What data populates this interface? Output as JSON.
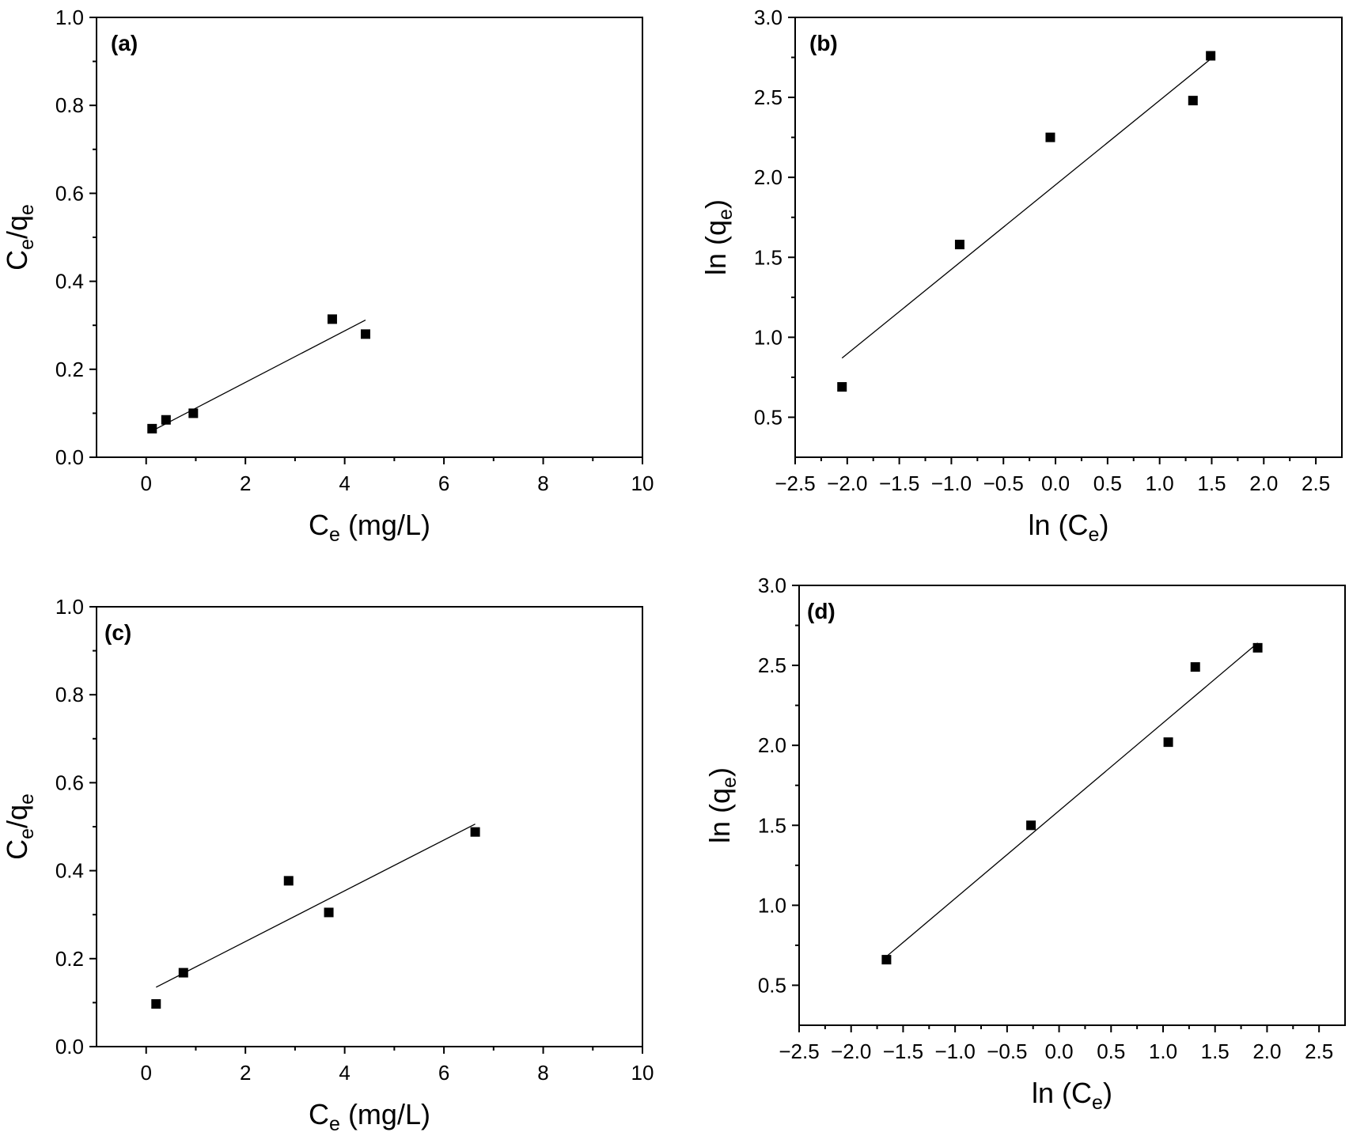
{
  "chart_data": [
    {
      "type": "scatter",
      "panel": "(a)",
      "xlabel": {
        "main": "C",
        "sub": "e",
        "suffix": " (mg/L)"
      },
      "ylabel": {
        "parts": [
          {
            "t": "C"
          },
          {
            "t": "e",
            "sub": true
          },
          {
            "t": "/q"
          },
          {
            "t": "e",
            "sub": true
          }
        ]
      },
      "xlim": [
        -1,
        10
      ],
      "ylim": [
        0,
        1
      ],
      "xticks": [
        0,
        2,
        4,
        6,
        8,
        10
      ],
      "xtick_labels": [
        "0",
        "2",
        "4",
        "6",
        "8",
        "10"
      ],
      "yticks": [
        0,
        0.2,
        0.4,
        0.6,
        0.8,
        1.0
      ],
      "ytick_labels": [
        "0.0",
        "0.2",
        "0.4",
        "0.6",
        "0.8",
        "1.0"
      ],
      "points": [
        {
          "x": 0.12,
          "y": 0.065
        },
        {
          "x": 0.4,
          "y": 0.085
        },
        {
          "x": 0.95,
          "y": 0.1
        },
        {
          "x": 3.75,
          "y": 0.314
        },
        {
          "x": 4.42,
          "y": 0.28
        }
      ],
      "fit_line": {
        "x": [
          0.12,
          4.42
        ],
        "y": [
          0.06,
          0.312
        ]
      }
    },
    {
      "type": "scatter",
      "panel": "(b)",
      "xlabel": {
        "main": "ln (C",
        "sub": "e",
        "suffix": ")"
      },
      "ylabel": {
        "parts": [
          {
            "t": "ln (q"
          },
          {
            "t": "e",
            "sub": true
          },
          {
            "t": ")"
          }
        ]
      },
      "xlim": [
        -2.5,
        2.75
      ],
      "ylim": [
        0.25,
        3.0
      ],
      "xticks": [
        -2.5,
        -2.0,
        -1.5,
        -1.0,
        -0.5,
        0.0,
        0.5,
        1.0,
        1.5,
        2.0,
        2.5
      ],
      "xtick_labels": [
        "−2.5",
        "−2.0",
        "−1.5",
        "−1.0",
        "−0.5",
        "0.0",
        "0.5",
        "1.0",
        "1.5",
        "2.0",
        "2.5"
      ],
      "yticks": [
        0.5,
        1.0,
        1.5,
        2.0,
        2.5,
        3.0
      ],
      "ytick_labels": [
        "0.5",
        "1.0",
        "1.5",
        "2.0",
        "2.5",
        "3.0"
      ],
      "points": [
        {
          "x": -2.05,
          "y": 0.69
        },
        {
          "x": -0.92,
          "y": 1.58
        },
        {
          "x": -0.05,
          "y": 2.25
        },
        {
          "x": 1.32,
          "y": 2.48
        },
        {
          "x": 1.49,
          "y": 2.76
        }
      ],
      "fit_line": {
        "x": [
          -2.05,
          1.49
        ],
        "y": [
          0.87,
          2.74
        ]
      }
    },
    {
      "type": "scatter",
      "panel": "(c)",
      "xlabel": {
        "main": "C",
        "sub": "e",
        "suffix": " (mg/L)"
      },
      "ylabel": {
        "parts": [
          {
            "t": "C"
          },
          {
            "t": "e",
            "sub": true
          },
          {
            "t": "/q"
          },
          {
            "t": "e",
            "sub": true
          }
        ]
      },
      "xlim": [
        -1,
        10
      ],
      "ylim": [
        0,
        1
      ],
      "xticks": [
        0,
        2,
        4,
        6,
        8,
        10
      ],
      "xtick_labels": [
        "0",
        "2",
        "4",
        "6",
        "8",
        "10"
      ],
      "yticks": [
        0,
        0.2,
        0.4,
        0.6,
        0.8,
        1.0
      ],
      "ytick_labels": [
        "0.0",
        "0.2",
        "0.4",
        "0.6",
        "0.8",
        "1.0"
      ],
      "points": [
        {
          "x": 0.2,
          "y": 0.097
        },
        {
          "x": 0.75,
          "y": 0.168
        },
        {
          "x": 2.87,
          "y": 0.377
        },
        {
          "x": 3.68,
          "y": 0.305
        },
        {
          "x": 6.63,
          "y": 0.488
        }
      ],
      "fit_line": {
        "x": [
          0.2,
          6.63
        ],
        "y": [
          0.135,
          0.506
        ]
      }
    },
    {
      "type": "scatter",
      "panel": "(d)",
      "xlabel": {
        "main": "ln (C",
        "sub": "e",
        "suffix": ")"
      },
      "ylabel": {
        "parts": [
          {
            "t": "ln (q"
          },
          {
            "t": "e",
            "sub": true
          },
          {
            "t": ")"
          }
        ]
      },
      "xlim": [
        -2.5,
        2.75
      ],
      "ylim": [
        0.25,
        3.0
      ],
      "xticks": [
        -2.5,
        -2.0,
        -1.5,
        -1.0,
        -0.5,
        0.0,
        0.5,
        1.0,
        1.5,
        2.0,
        2.5
      ],
      "xtick_labels": [
        "−2.5",
        "−2.0",
        "−1.5",
        "−1.0",
        "−0.5",
        "0.0",
        "0.5",
        "1.0",
        "1.5",
        "2.0",
        "2.5"
      ],
      "yticks": [
        0.5,
        1.0,
        1.5,
        2.0,
        2.5,
        3.0
      ],
      "ytick_labels": [
        "0.5",
        "1.0",
        "1.5",
        "2.0",
        "2.5",
        "3.0"
      ],
      "points": [
        {
          "x": -1.66,
          "y": 0.66
        },
        {
          "x": -0.27,
          "y": 1.5
        },
        {
          "x": 1.05,
          "y": 2.02
        },
        {
          "x": 1.31,
          "y": 2.49
        },
        {
          "x": 1.91,
          "y": 2.61
        }
      ],
      "fit_line": {
        "x": [
          -1.66,
          1.91
        ],
        "y": [
          0.68,
          2.64
        ]
      }
    }
  ]
}
